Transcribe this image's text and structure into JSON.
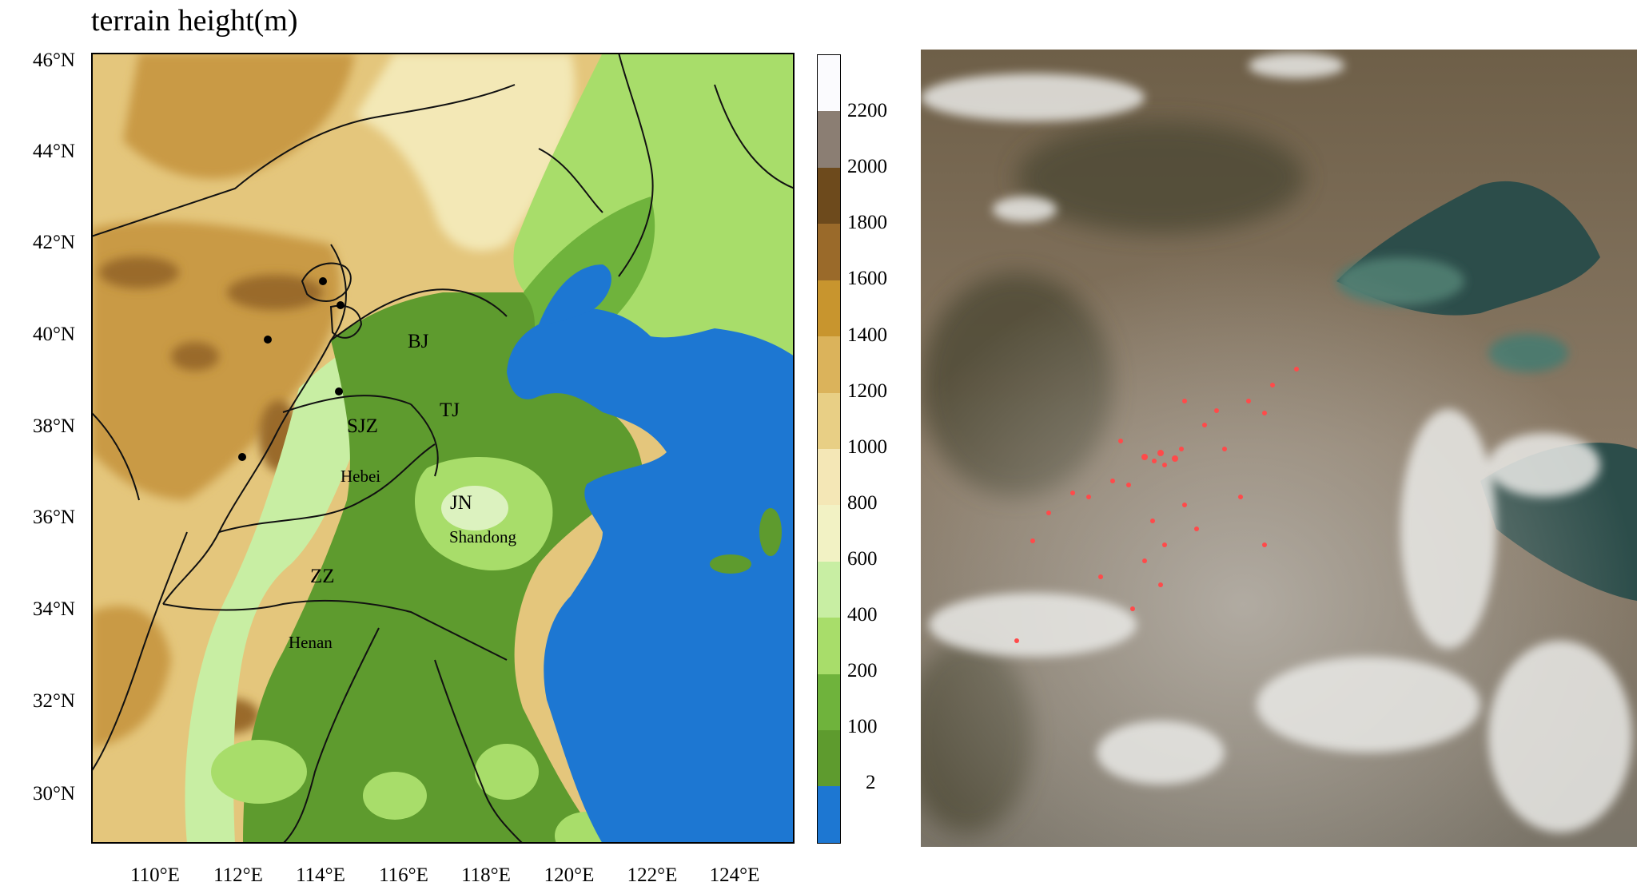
{
  "map": {
    "title": "terrain height(m)",
    "lat_labels": [
      "46°N",
      "44°N",
      "42°N",
      "40°N",
      "38°N",
      "36°N",
      "34°N",
      "32°N",
      "30°N"
    ],
    "lon_labels": [
      "110°E",
      "112°E",
      "114°E",
      "116°E",
      "118°E",
      "120°E",
      "122°E",
      "124°E"
    ],
    "cities": [
      {
        "code": "BJ"
      },
      {
        "code": "TJ"
      },
      {
        "code": "SJZ"
      },
      {
        "code": "JN"
      },
      {
        "code": "ZZ"
      }
    ],
    "provinces": [
      "Hebei",
      "Shandong",
      "Henan"
    ]
  },
  "colorbar": {
    "labels": [
      "2200",
      "2000",
      "1800",
      "1600",
      "1400",
      "1200",
      "1000",
      "800",
      "600",
      "400",
      "200",
      "100",
      "2"
    ],
    "colors": [
      "#fbfbfe",
      "#8b7e73",
      "#6d4a1c",
      "#9a6a2a",
      "#c8952e",
      "#dbb35b",
      "#e8cf85",
      "#f4e7b6",
      "#f2f2c4",
      "#c8eea3",
      "#a8dd6a",
      "#6fb33c",
      "#5e9b2e",
      "#1d77d2"
    ]
  },
  "colors": {
    "sea": "#1d77d2",
    "lowland": "#5e9b2e",
    "hills": "#a8dd6a",
    "highland": "#d9b869",
    "mountain": "#b3843a",
    "fire_points": "#ff4a4a"
  }
}
